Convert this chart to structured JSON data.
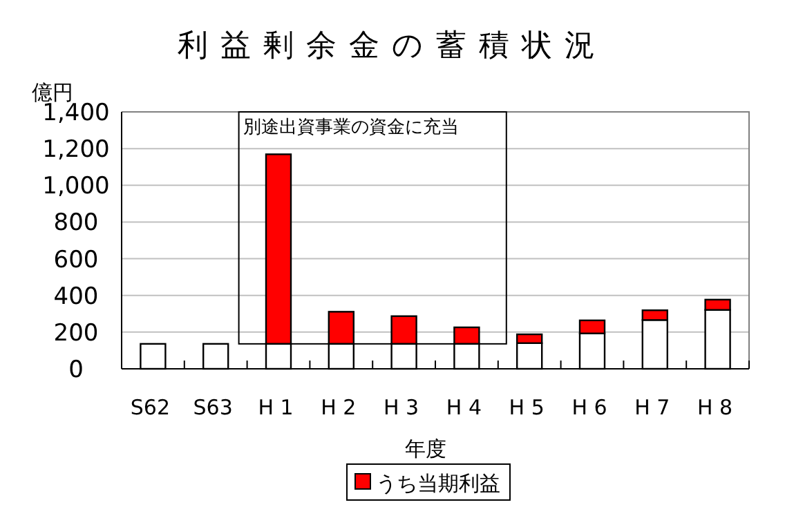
{
  "chart_data": {
    "type": "bar",
    "stacked": true,
    "title": "利益剰余金の蓄積状況",
    "xlabel": "年度",
    "ylabel": "億円",
    "categories": [
      "S62",
      "S63",
      "H 1",
      "H 2",
      "H 3",
      "H 4",
      "H 5",
      "H 6",
      "H 7",
      "H 8"
    ],
    "series": [
      {
        "color": "#ffffff",
        "values": [
          136,
          136,
          136,
          136,
          136,
          136,
          140,
          193,
          266,
          321
        ]
      },
      {
        "name": "うち当期利益",
        "color": "#ff0000",
        "values": [
          null,
          null,
          1033,
          175,
          151,
          90,
          48,
          71,
          53,
          56
        ]
      }
    ],
    "ylim": [
      0,
      1400
    ],
    "yticks": [
      {
        "value": 0,
        "label": "0"
      },
      {
        "value": 200,
        "label": "200"
      },
      {
        "value": 400,
        "label": "400"
      },
      {
        "value": 600,
        "label": "600"
      },
      {
        "value": 800,
        "label": "800"
      },
      {
        "value": 1000,
        "label": "1,000"
      },
      {
        "value": 1200,
        "label": "1,200"
      },
      {
        "value": 1400,
        "label": "1,400"
      }
    ],
    "grid": "y",
    "legend": "bottom",
    "annotations": [
      "別途出資事業の資金に充当"
    ]
  }
}
